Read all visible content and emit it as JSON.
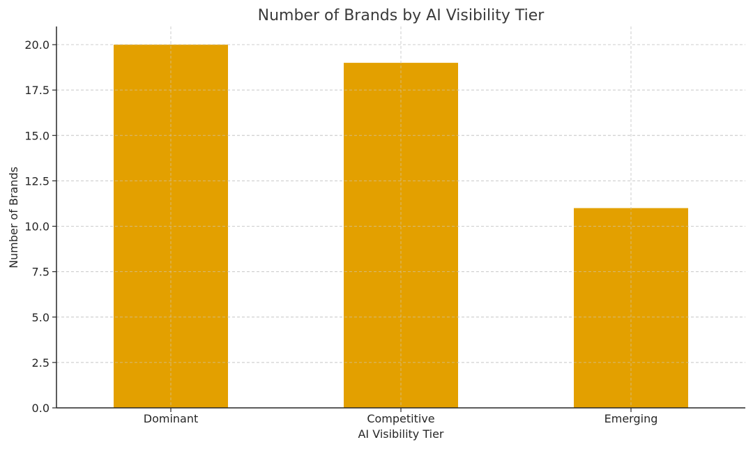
{
  "chart_data": {
    "type": "bar",
    "title": "Number of Brands by AI Visibility Tier",
    "xlabel": "AI Visibility Tier",
    "ylabel": "Number of Brands",
    "categories": [
      "Dominant",
      "Competitive",
      "Emerging"
    ],
    "values": [
      20,
      19,
      11
    ],
    "ylim": [
      0,
      21
    ],
    "yticks": [
      "0.0",
      "2.5",
      "5.0",
      "7.5",
      "10.0",
      "12.5",
      "15.0",
      "17.5",
      "20.0"
    ],
    "grid": true,
    "bar_color": "#E3A000"
  }
}
